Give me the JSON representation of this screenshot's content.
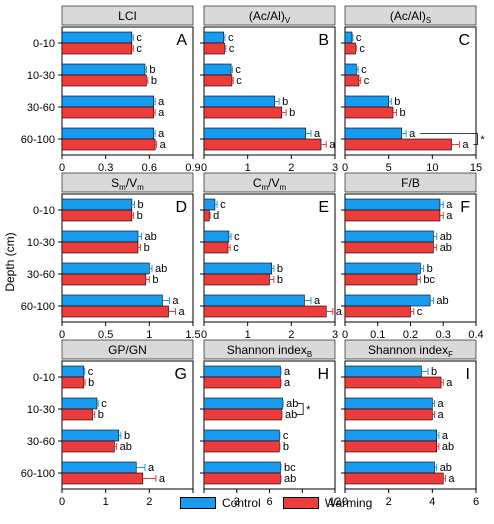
{
  "figure": {
    "ylabel": "Depth (cm)",
    "legend": [
      {
        "name": "Control",
        "color": "#1a9bf0"
      },
      {
        "name": "Warming",
        "color": "#ee3b3b"
      }
    ],
    "bar_colors": {
      "control": "#1a9bf0",
      "warming": "#ee3b3b",
      "header": "#d9d9d9"
    }
  },
  "chart_data": [
    {
      "type": "bar",
      "orientation": "horizontal",
      "title": "LCI",
      "letter": "A",
      "categories": [
        "0-10",
        "10-30",
        "30-60",
        "60-100"
      ],
      "xlim": [
        0,
        0.9
      ],
      "xticks": [
        "0",
        "0.3",
        "0.6",
        "0.9"
      ],
      "series": [
        {
          "name": "Control",
          "values": [
            0.48,
            0.57,
            0.63,
            0.63
          ],
          "errors": [
            0.01,
            0.01,
            0.01,
            0.01
          ],
          "labels": [
            "c",
            "b",
            "a",
            "a"
          ]
        },
        {
          "name": "Warming",
          "values": [
            0.48,
            0.58,
            0.63,
            0.64
          ],
          "errors": [
            0.01,
            0.01,
            0.01,
            0.01
          ],
          "labels": [
            "c",
            "b",
            "a",
            "a"
          ]
        }
      ]
    },
    {
      "type": "bar",
      "orientation": "horizontal",
      "title": "(Ac/Al)",
      "title_sub": "V",
      "letter": "B",
      "categories": [
        "0-10",
        "10-30",
        "30-60",
        "60-100"
      ],
      "xlim": [
        0,
        3
      ],
      "xticks": [
        "0",
        "1",
        "2",
        "3"
      ],
      "series": [
        {
          "name": "Control",
          "values": [
            0.45,
            0.62,
            1.62,
            2.33
          ],
          "errors": [
            0.03,
            0.03,
            0.1,
            0.12
          ],
          "labels": [
            "c",
            "c",
            "b",
            "a"
          ]
        },
        {
          "name": "Warming",
          "values": [
            0.47,
            0.64,
            1.78,
            2.68
          ],
          "errors": [
            0.03,
            0.03,
            0.1,
            0.12
          ],
          "labels": [
            "c",
            "c",
            "b",
            "a"
          ]
        }
      ]
    },
    {
      "type": "bar",
      "orientation": "horizontal",
      "title": "(Ac/Al)",
      "title_sub": "S",
      "letter": "C",
      "categories": [
        "0-10",
        "10-30",
        "30-60",
        "60-100"
      ],
      "xlim": [
        0,
        15
      ],
      "xticks": [
        "0",
        "5",
        "10",
        "15"
      ],
      "series": [
        {
          "name": "Control",
          "values": [
            0.8,
            1.3,
            5.0,
            6.5
          ],
          "errors": [
            0.1,
            0.2,
            0.3,
            0.5
          ],
          "labels": [
            "c",
            "c",
            "b",
            "a"
          ]
        },
        {
          "name": "Warming",
          "values": [
            1.2,
            1.6,
            5.5,
            12.2
          ],
          "errors": [
            0.1,
            0.2,
            0.4,
            0.9
          ],
          "labels": [
            "c",
            "c",
            "b",
            "a"
          ]
        }
      ],
      "significance": {
        "category": "60-100",
        "mark": "*"
      }
    },
    {
      "type": "bar",
      "orientation": "horizontal",
      "title": "S",
      "title_sub": "m",
      "title_mid": "/V",
      "title_sub2": "m",
      "letter": "D",
      "categories": [
        "0-10",
        "10-30",
        "30-60",
        "60-100"
      ],
      "xlim": [
        0,
        1.5
      ],
      "xticks": [
        "0",
        "0.5",
        "1",
        "1.5"
      ],
      "series": [
        {
          "name": "Control",
          "values": [
            0.8,
            0.87,
            1.0,
            1.15
          ],
          "errors": [
            0.03,
            0.04,
            0.03,
            0.08
          ],
          "labels": [
            "b",
            "ab",
            "ab",
            "a"
          ]
        },
        {
          "name": "Warming",
          "values": [
            0.8,
            0.87,
            0.96,
            1.22
          ],
          "errors": [
            0.02,
            0.03,
            0.04,
            0.08
          ],
          "labels": [
            "b",
            "b",
            "b",
            "a"
          ]
        }
      ]
    },
    {
      "type": "bar",
      "orientation": "horizontal",
      "title": "C",
      "title_sub": "m",
      "title_mid": "/V",
      "title_sub2": "m",
      "letter": "E",
      "categories": [
        "0-10",
        "10-30",
        "30-60",
        "60-100"
      ],
      "xlim": [
        0,
        3
      ],
      "xticks": [
        "0",
        "1",
        "2",
        "3"
      ],
      "series": [
        {
          "name": "Control",
          "values": [
            0.25,
            0.57,
            1.55,
            2.3
          ],
          "errors": [
            0.05,
            0.05,
            0.05,
            0.15
          ],
          "labels": [
            "c",
            "c",
            "b",
            "a"
          ]
        },
        {
          "name": "Warming",
          "values": [
            0.12,
            0.55,
            1.5,
            2.8
          ],
          "errors": [
            0.02,
            0.05,
            0.1,
            0.15
          ],
          "labels": [
            "d",
            "c",
            "b",
            "a"
          ]
        }
      ]
    },
    {
      "type": "bar",
      "orientation": "horizontal",
      "title": "F/B",
      "letter": "F",
      "categories": [
        "0-10",
        "10-30",
        "30-60",
        "60-100"
      ],
      "xlim": [
        0,
        0.4
      ],
      "xticks": [
        "0",
        "0.1",
        "0.2",
        "0.3",
        "0.4"
      ],
      "series": [
        {
          "name": "Control",
          "values": [
            0.29,
            0.27,
            0.23,
            0.26
          ],
          "errors": [
            0.01,
            0.01,
            0.01,
            0.01
          ],
          "labels": [
            "a",
            "ab",
            "b",
            "ab"
          ]
        },
        {
          "name": "Warming",
          "values": [
            0.29,
            0.27,
            0.22,
            0.2
          ],
          "errors": [
            0.01,
            0.01,
            0.01,
            0.01
          ],
          "labels": [
            "a",
            "ab",
            "bc",
            "c"
          ]
        }
      ]
    },
    {
      "type": "bar",
      "orientation": "horizontal",
      "title": "GP/GN",
      "letter": "G",
      "categories": [
        "0-10",
        "10-30",
        "30-60",
        "60-100"
      ],
      "xlim": [
        0,
        3
      ],
      "xticks": [
        "0",
        "1",
        "2",
        "3"
      ],
      "series": [
        {
          "name": "Control",
          "values": [
            0.5,
            0.8,
            1.3,
            1.7
          ],
          "errors": [
            0.02,
            0.03,
            0.05,
            0.2
          ],
          "labels": [
            "c",
            "c",
            "b",
            "a"
          ]
        },
        {
          "name": "Warming",
          "values": [
            0.5,
            0.7,
            1.2,
            1.85
          ],
          "errors": [
            0.03,
            0.05,
            0.05,
            0.3
          ],
          "labels": [
            "b",
            "b",
            "ab",
            "a"
          ]
        }
      ]
    },
    {
      "type": "bar",
      "orientation": "horizontal",
      "title": "Shannon index",
      "title_sub": "B",
      "letter": "H",
      "categories": [
        "0-10",
        "10-30",
        "30-60",
        "60-100"
      ],
      "xlim": [
        0,
        12
      ],
      "xticks": [
        "0",
        "3",
        "6",
        "9",
        "12"
      ],
      "series": [
        {
          "name": "Control",
          "values": [
            7.0,
            7.2,
            6.9,
            7.0
          ],
          "errors": [
            0.05,
            0.05,
            0.05,
            0.05
          ],
          "labels": [
            "a",
            "ab",
            "c",
            "bc"
          ]
        },
        {
          "name": "Warming",
          "values": [
            7.0,
            7.1,
            6.9,
            7.0
          ],
          "errors": [
            0.05,
            0.05,
            0.05,
            0.05
          ],
          "labels": [
            "a",
            "ab",
            "b",
            "ab"
          ]
        }
      ],
      "significance": {
        "category": "10-30",
        "mark": "*"
      }
    },
    {
      "type": "bar",
      "orientation": "horizontal",
      "title": "Shannon index",
      "title_sub": "F",
      "letter": "I",
      "categories": [
        "0-10",
        "10-30",
        "30-60",
        "60-100"
      ],
      "xlim": [
        0,
        6
      ],
      "xticks": [
        "0",
        "2",
        "4",
        "6"
      ],
      "series": [
        {
          "name": "Control",
          "values": [
            3.5,
            4.0,
            4.2,
            4.1
          ],
          "errors": [
            0.3,
            0.1,
            0.1,
            0.1
          ],
          "labels": [
            "b",
            "a",
            "a",
            "ab"
          ]
        },
        {
          "name": "Warming",
          "values": [
            4.4,
            4.0,
            4.2,
            4.5
          ],
          "errors": [
            0.1,
            0.1,
            0.1,
            0.1
          ],
          "labels": [
            "a",
            "a",
            "ab",
            "a"
          ]
        }
      ]
    }
  ]
}
